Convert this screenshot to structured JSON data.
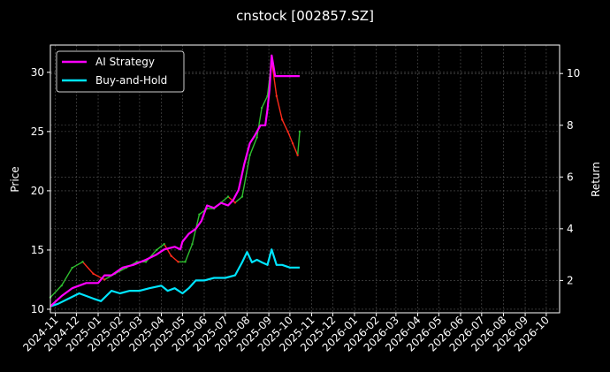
{
  "chart_data": {
    "type": "line",
    "title": "cnstock [002857.SZ]",
    "ylabel": "Price",
    "y2label": "Return",
    "x_ticks": [
      "2024-11",
      "2024-12",
      "2025-01",
      "2025-02",
      "2025-03",
      "2025-04",
      "2025-05",
      "2025-06",
      "2025-07",
      "2025-08",
      "2025-09",
      "2025-10",
      "2025-11",
      "2025-12",
      "2026-01",
      "2026-02",
      "2026-03",
      "2026-04",
      "2026-05",
      "2026-06",
      "2026-07",
      "2026-08",
      "2026-09",
      "2026-10"
    ],
    "xlim": [
      "2024-10-25",
      "2026-10-20"
    ],
    "ylim": [
      9.7,
      32.3
    ],
    "y_ticks": [
      10,
      15,
      20,
      25,
      30
    ],
    "y2lim": [
      0.75,
      11.1
    ],
    "y2_ticks": [
      2,
      4,
      6,
      8,
      10
    ],
    "grid": true,
    "legend_position": "top-left",
    "colors": {
      "up": "#2fbf2f",
      "down": "#ff2a1a",
      "strategy": "#ff00ff",
      "buyhold": "#00e5ff"
    },
    "series": [
      {
        "name": "AI Strategy",
        "axis": "return",
        "x": [
          "2024-10-25",
          "2024-11-10",
          "2024-11-25",
          "2024-12-15",
          "2025-01-01",
          "2025-01-10",
          "2025-01-20",
          "2025-02-05",
          "2025-02-20",
          "2025-03-10",
          "2025-03-25",
          "2025-04-05",
          "2025-04-20",
          "2025-04-28",
          "2025-05-01",
          "2025-05-10",
          "2025-05-20",
          "2025-05-28",
          "2025-06-05",
          "2025-06-15",
          "2025-06-25",
          "2025-07-05",
          "2025-07-12",
          "2025-07-20",
          "2025-07-28",
          "2025-08-05",
          "2025-08-12",
          "2025-08-20",
          "2025-08-27",
          "2025-08-30",
          "2025-09-02",
          "2025-09-05",
          "2025-09-10",
          "2025-10-15"
        ],
        "values": [
          1.0,
          1.4,
          1.7,
          1.9,
          1.9,
          2.2,
          2.2,
          2.5,
          2.6,
          2.8,
          3.0,
          3.2,
          3.3,
          3.2,
          3.5,
          3.8,
          4.0,
          4.3,
          4.9,
          4.8,
          5.0,
          4.9,
          5.1,
          5.5,
          6.5,
          7.3,
          7.6,
          8.0,
          8.0,
          8.6,
          9.4,
          10.7,
          9.9,
          9.9
        ]
      },
      {
        "name": "Buy-and-Hold",
        "axis": "return",
        "x": [
          "2024-10-25",
          "2024-11-05",
          "2024-11-20",
          "2024-12-05",
          "2024-12-25",
          "2025-01-05",
          "2025-01-20",
          "2025-02-01",
          "2025-02-15",
          "2025-03-01",
          "2025-03-15",
          "2025-04-01",
          "2025-04-10",
          "2025-04-20",
          "2025-05-01",
          "2025-05-10",
          "2025-05-20",
          "2025-06-01",
          "2025-06-15",
          "2025-07-01",
          "2025-07-15",
          "2025-07-25",
          "2025-08-01",
          "2025-08-08",
          "2025-08-15",
          "2025-08-22",
          "2025-08-30",
          "2025-09-05",
          "2025-09-12",
          "2025-09-20",
          "2025-10-01",
          "2025-10-15"
        ],
        "values": [
          1.0,
          1.1,
          1.3,
          1.5,
          1.3,
          1.2,
          1.6,
          1.5,
          1.6,
          1.6,
          1.7,
          1.8,
          1.6,
          1.7,
          1.5,
          1.7,
          2.0,
          2.0,
          2.1,
          2.1,
          2.2,
          2.7,
          3.1,
          2.7,
          2.8,
          2.7,
          2.6,
          3.2,
          2.6,
          2.6,
          2.5,
          2.5
        ]
      },
      {
        "name": "price",
        "axis": "price",
        "x": [
          "2024-10-25",
          "2024-11-10",
          "2024-11-25",
          "2024-12-10",
          "2024-12-25",
          "2025-01-10",
          "2025-01-25",
          "2025-02-10",
          "2025-02-25",
          "2025-03-10",
          "2025-03-25",
          "2025-04-05",
          "2025-04-15",
          "2025-04-25",
          "2025-05-05",
          "2025-05-15",
          "2025-05-25",
          "2025-06-05",
          "2025-06-15",
          "2025-06-25",
          "2025-07-05",
          "2025-07-15",
          "2025-07-25",
          "2025-08-05",
          "2025-08-15",
          "2025-08-22",
          "2025-08-30",
          "2025-09-05",
          "2025-09-12",
          "2025-09-20",
          "2025-09-28",
          "2025-10-05",
          "2025-10-12",
          "2025-10-15"
        ],
        "values": [
          11.0,
          12.0,
          13.5,
          14.0,
          13.0,
          12.5,
          13.0,
          13.5,
          14.0,
          14.0,
          15.0,
          15.5,
          14.5,
          14.0,
          14.0,
          15.5,
          18.0,
          18.5,
          18.5,
          19.0,
          19.5,
          19.0,
          19.5,
          23.0,
          24.5,
          27.0,
          28.0,
          31.0,
          28.0,
          26.0,
          25.0,
          24.0,
          23.0,
          25.0
        ]
      }
    ]
  }
}
